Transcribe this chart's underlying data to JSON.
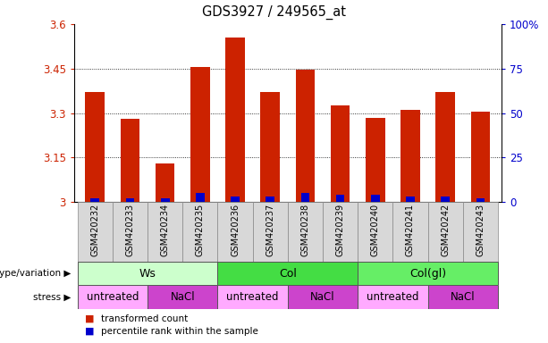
{
  "title": "GDS3927 / 249565_at",
  "samples": [
    "GSM420232",
    "GSM420233",
    "GSM420234",
    "GSM420235",
    "GSM420236",
    "GSM420237",
    "GSM420238",
    "GSM420239",
    "GSM420240",
    "GSM420241",
    "GSM420242",
    "GSM420243"
  ],
  "transformed_count": [
    3.37,
    3.28,
    3.13,
    3.455,
    3.555,
    3.37,
    3.445,
    3.325,
    3.285,
    3.31,
    3.37,
    3.305
  ],
  "percentile_rank": [
    2,
    2,
    2,
    5,
    3,
    3,
    5,
    4,
    4,
    3,
    3,
    2
  ],
  "bar_base": 3.0,
  "ylim_left": [
    3.0,
    3.6
  ],
  "ylim_right": [
    0,
    100
  ],
  "yticks_left": [
    3.0,
    3.15,
    3.3,
    3.45,
    3.6
  ],
  "ytick_labels_left": [
    "3",
    "3.15",
    "3.3",
    "3.45",
    "3.6"
  ],
  "yticks_right": [
    0,
    25,
    50,
    75,
    100
  ],
  "ytick_labels_right": [
    "0",
    "25",
    "50",
    "75",
    "100%"
  ],
  "red_color": "#cc2200",
  "blue_color": "#0000cc",
  "bar_width": 0.55,
  "genotype_groups": [
    {
      "label": "Ws",
      "start": 0,
      "end": 3,
      "color": "#ccffcc"
    },
    {
      "label": "Col",
      "start": 4,
      "end": 7,
      "color": "#44dd44"
    },
    {
      "label": "Col(gl)",
      "start": 8,
      "end": 11,
      "color": "#66ee66"
    }
  ],
  "stress_groups": [
    {
      "label": "untreated",
      "start": 0,
      "end": 1,
      "color": "#ffaaff"
    },
    {
      "label": "NaCl",
      "start": 2,
      "end": 3,
      "color": "#cc44cc"
    },
    {
      "label": "untreated",
      "start": 4,
      "end": 5,
      "color": "#ffaaff"
    },
    {
      "label": "NaCl",
      "start": 6,
      "end": 7,
      "color": "#cc44cc"
    },
    {
      "label": "untreated",
      "start": 8,
      "end": 9,
      "color": "#ffaaff"
    },
    {
      "label": "NaCl",
      "start": 10,
      "end": 11,
      "color": "#cc44cc"
    }
  ],
  "legend_red_label": "transformed count",
  "legend_blue_label": "percentile rank within the sample",
  "genotype_label": "genotype/variation",
  "stress_label": "stress",
  "bg_color": "#d8d8d8"
}
